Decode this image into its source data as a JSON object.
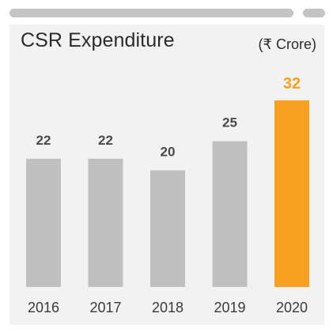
{
  "chart_data": {
    "type": "bar",
    "title": "CSR Expenditure",
    "unit": "(₹ Crore)",
    "categories": [
      "2016",
      "2017",
      "2018",
      "2019",
      "2020"
    ],
    "values": [
      22,
      22,
      20,
      25,
      32
    ],
    "ylim": [
      0,
      32
    ],
    "grid": false,
    "colors": {
      "default": "#c0c0c0",
      "highlight": "#f7a022",
      "label_default": "#4a4a4a",
      "label_highlight": "#f7a022",
      "tick": "#3a3a3a"
    },
    "highlight_index": 4
  }
}
